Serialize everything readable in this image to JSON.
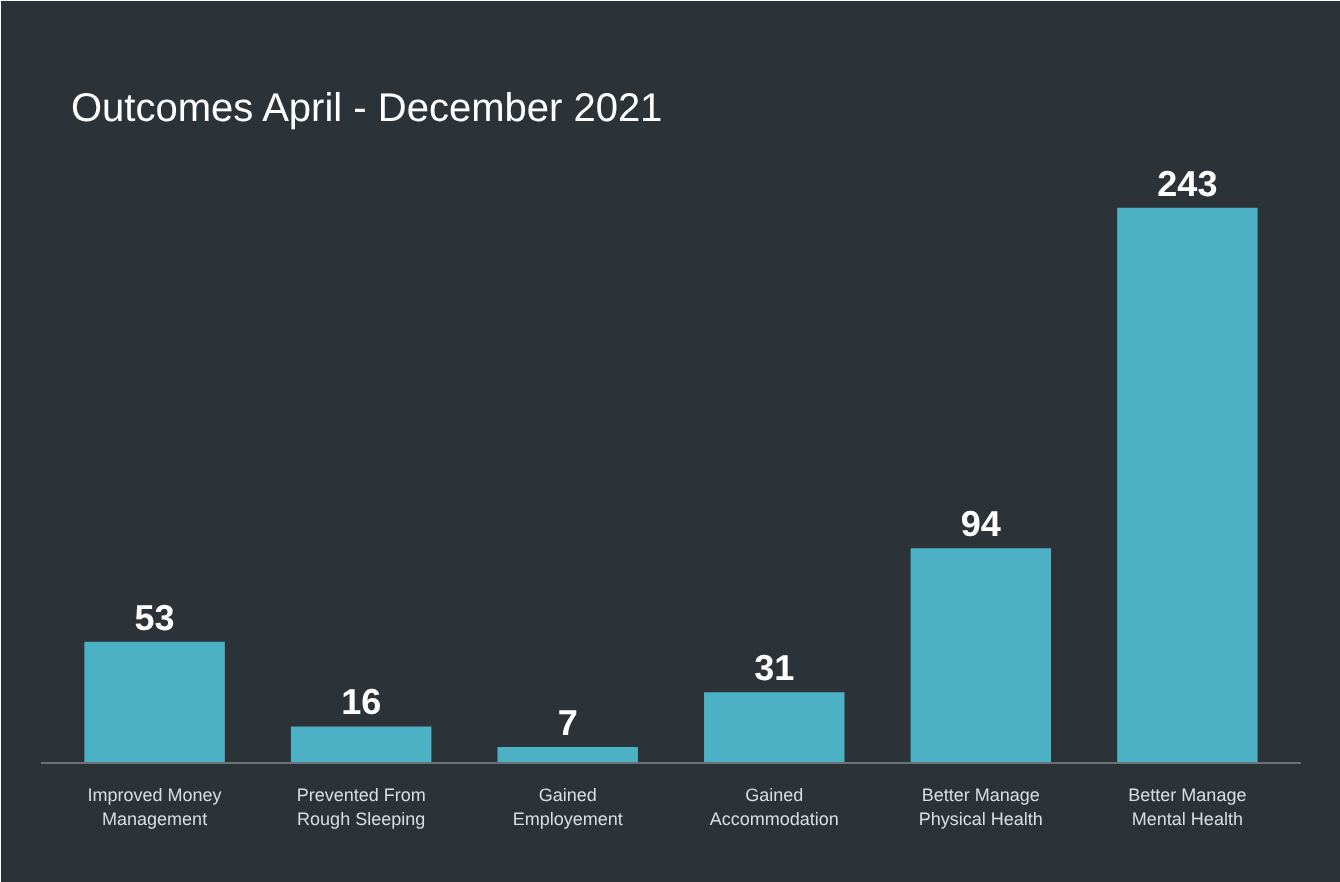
{
  "chart_data": {
    "type": "bar",
    "title": "Outcomes April - December 2021",
    "categories": [
      "Improved Money\nManagement",
      "Prevented From\nRough Sleeping",
      "Gained\nEmployement",
      "Gained\nAccommodation",
      "Better Manage\nPhysical Health",
      "Better Manage\nMental Health"
    ],
    "values": [
      53,
      16,
      7,
      31,
      94,
      243
    ],
    "color": "#4cb1c4",
    "data_labels": true
  }
}
